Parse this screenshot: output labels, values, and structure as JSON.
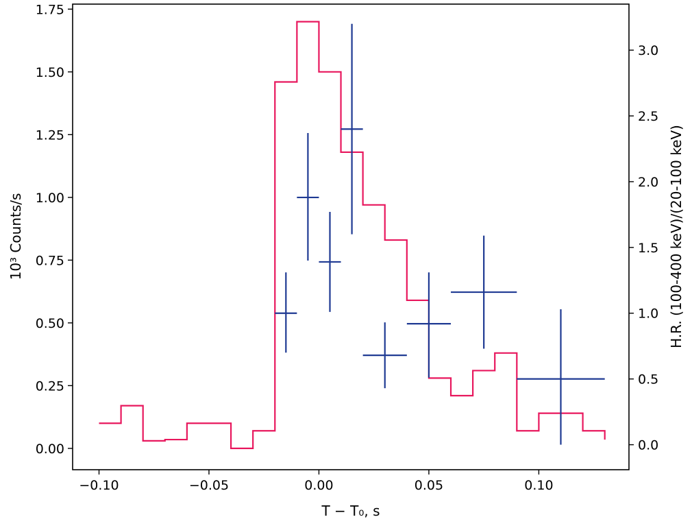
{
  "chart_data": {
    "type": "line",
    "xlabel": "T − T₀, s",
    "ylabel_left": "10³ Counts/s",
    "ylabel_right": "H.R. (100-400 keV)/(20-100 keV)",
    "xlim": [
      -0.112,
      0.141
    ],
    "ylim_left": [
      -0.085,
      1.77
    ],
    "ylim_right": [
      -0.19,
      3.35
    ],
    "x_ticks": [
      -0.1,
      -0.05,
      0.0,
      0.05,
      0.1
    ],
    "x_tick_labels": [
      "−0.10",
      "−0.05",
      "0.00",
      "0.05",
      "0.10"
    ],
    "left_ticks": [
      0.0,
      0.25,
      0.5,
      0.75,
      1.0,
      1.25,
      1.5,
      1.75
    ],
    "left_tick_labels": [
      "0.00",
      "0.25",
      "0.50",
      "0.75",
      "1.00",
      "1.25",
      "1.50",
      "1.75"
    ],
    "right_ticks": [
      0.0,
      0.5,
      1.0,
      1.5,
      2.0,
      2.5,
      3.0
    ],
    "right_tick_labels": [
      "0.0",
      "0.5",
      "1.0",
      "1.5",
      "2.0",
      "2.5",
      "3.0"
    ],
    "grid": false,
    "legend": "none",
    "series": [
      {
        "kind": "step-histogram",
        "axis": "left",
        "color": "#e8175d",
        "bin_edges": [
          -0.1,
          -0.09,
          -0.08,
          -0.07,
          -0.06,
          -0.05,
          -0.04,
          -0.03,
          -0.02,
          -0.01,
          0.0,
          0.01,
          0.02,
          0.03,
          0.04,
          0.05,
          0.06,
          0.07,
          0.08,
          0.09,
          0.1,
          0.11,
          0.12,
          0.13
        ],
        "values": [
          0.1,
          0.17,
          0.03,
          0.035,
          0.1,
          0.1,
          0.0,
          0.07,
          1.46,
          1.7,
          1.5,
          1.18,
          0.97,
          0.83,
          0.59,
          0.28,
          0.21,
          0.31,
          0.38,
          0.07,
          0.14,
          0.14,
          0.07
        ],
        "last_edge_drop_to": 0.035
      },
      {
        "kind": "errorbars",
        "axis": "right",
        "color": "#1f3a93",
        "points": [
          {
            "x": -0.015,
            "xerr": 0.005,
            "y": 1.0,
            "y_low": 0.7,
            "y_high": 1.31
          },
          {
            "x": -0.005,
            "xerr": 0.005,
            "y": 1.88,
            "y_low": 1.4,
            "y_high": 2.37
          },
          {
            "x": 0.005,
            "xerr": 0.005,
            "y": 1.39,
            "y_low": 1.01,
            "y_high": 1.77
          },
          {
            "x": 0.015,
            "xerr": 0.005,
            "y": 2.4,
            "y_low": 1.6,
            "y_high": 3.2
          },
          {
            "x": 0.03,
            "xerr": 0.01,
            "y": 0.68,
            "y_low": 0.43,
            "y_high": 0.93
          },
          {
            "x": 0.05,
            "xerr": 0.01,
            "y": 0.92,
            "y_low": 0.51,
            "y_high": 1.31
          },
          {
            "x": 0.075,
            "xerr": 0.015,
            "y": 1.16,
            "y_low": 0.73,
            "y_high": 1.59
          },
          {
            "x": 0.11,
            "xerr": 0.02,
            "y": 0.5,
            "y_low": 0.0,
            "y_high": 1.03
          }
        ]
      }
    ]
  }
}
